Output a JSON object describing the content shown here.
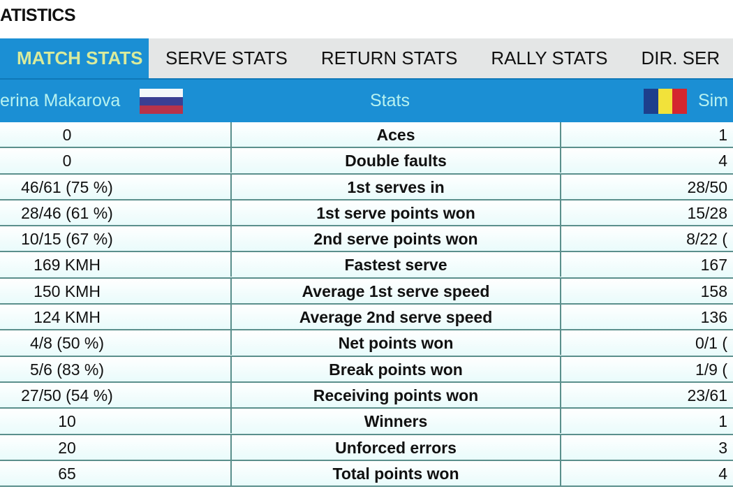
{
  "title": "ATISTICS",
  "tabs": [
    {
      "label": "MATCH STATS",
      "active": true
    },
    {
      "label": "SERVE STATS"
    },
    {
      "label": "RETURN STATS"
    },
    {
      "label": "RALLY STATS"
    },
    {
      "label": "DIR. SER"
    }
  ],
  "header": {
    "player1": "erina Makarova",
    "stats": "Stats",
    "player2": "Sim",
    "player1_flag": "russia-flag",
    "player2_flag": "romania-flag"
  },
  "colors": {
    "accent": "#1b8fd4",
    "active_tab_text": "#d9eb9c",
    "header_text": "#b7f2f0",
    "border": "#5b8f8c"
  },
  "rows": [
    {
      "p1": "0",
      "stat": "Aces",
      "p2": "1"
    },
    {
      "p1": "0",
      "stat": "Double faults",
      "p2": "4"
    },
    {
      "p1": "46/61 (75 %)",
      "stat": "1st serves in",
      "p2": "28/50"
    },
    {
      "p1": "28/46 (61 %)",
      "stat": "1st serve points won",
      "p2": "15/28"
    },
    {
      "p1": "10/15 (67 %)",
      "stat": "2nd serve points won",
      "p2": "8/22 ("
    },
    {
      "p1": "169 KMH",
      "stat": "Fastest serve",
      "p2": "167"
    },
    {
      "p1": "150 KMH",
      "stat": "Average 1st serve speed",
      "p2": "158"
    },
    {
      "p1": "124 KMH",
      "stat": "Average 2nd serve speed",
      "p2": "136"
    },
    {
      "p1": "4/8 (50 %)",
      "stat": "Net points won",
      "p2": "0/1 ("
    },
    {
      "p1": "5/6 (83 %)",
      "stat": "Break points won",
      "p2": "1/9 ("
    },
    {
      "p1": "27/50 (54 %)",
      "stat": "Receiving points won",
      "p2": "23/61"
    },
    {
      "p1": "10",
      "stat": "Winners",
      "p2": "1"
    },
    {
      "p1": "20",
      "stat": "Unforced errors",
      "p2": "3"
    },
    {
      "p1": "65",
      "stat": "Total points won",
      "p2": "4"
    }
  ]
}
